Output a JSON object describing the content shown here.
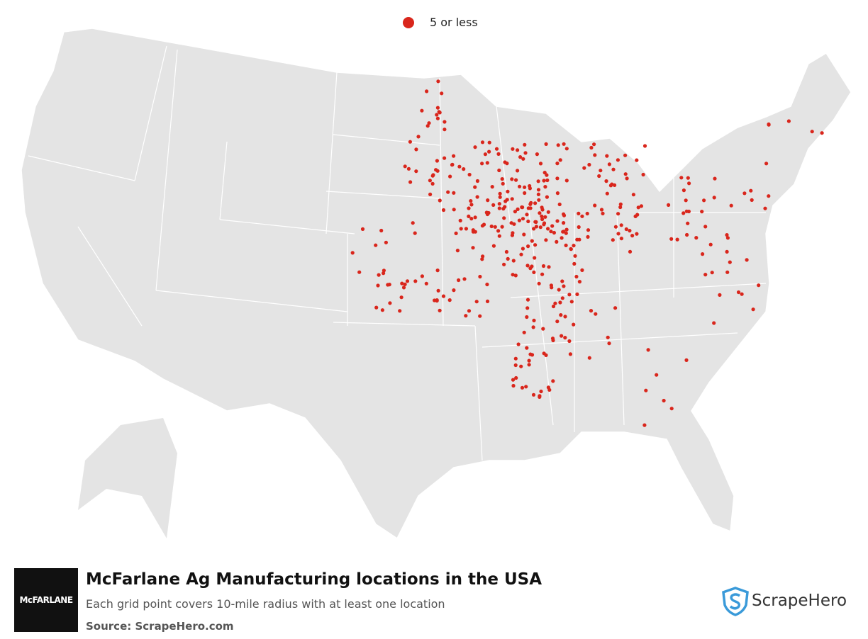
{
  "legend": {
    "label": "5 or less",
    "color": "#d9261c"
  },
  "footer": {
    "title": "McFarlane Ag Manufacturing locations in the USA",
    "subtitle": "Each grid point covers 10-mile radius with at least one location",
    "source": "Source: ScrapeHero.com",
    "logo_text": "McFARLANE",
    "brand": "ScrapeHero"
  }
}
